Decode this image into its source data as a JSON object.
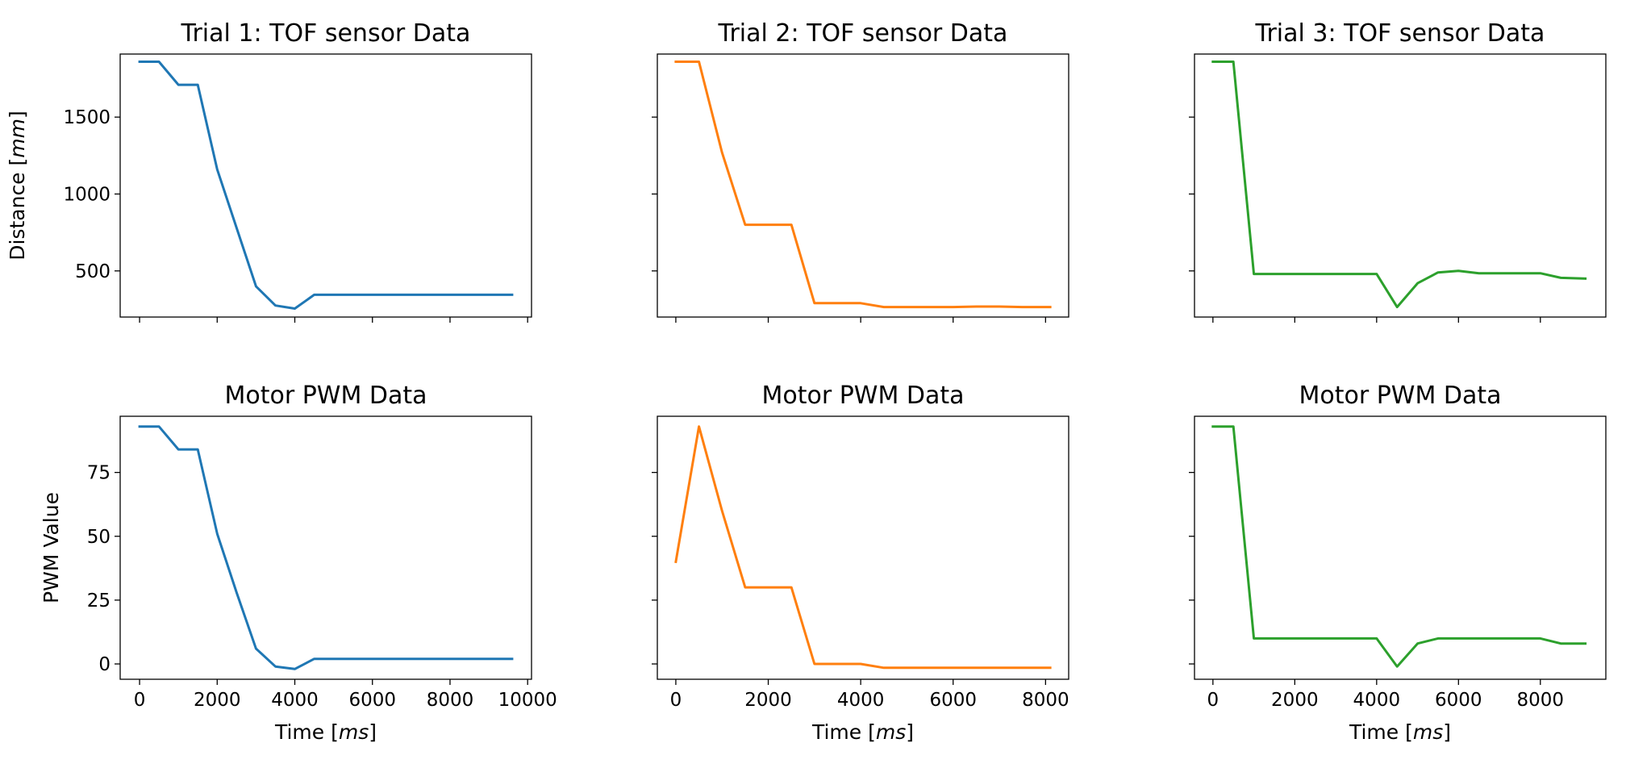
{
  "figure": {
    "colors": {
      "trial1": "#1f77b4",
      "trial2": "#ff7f0e",
      "trial3": "#2ca02c",
      "axes": "#000000"
    }
  },
  "chart_data": [
    {
      "type": "line",
      "title": "Trial 1: TOF sensor Data",
      "xlabel": "",
      "ylabel": "Distance [mm]",
      "xlim": [
        -500,
        10100
      ],
      "ylim": [
        200,
        1910
      ],
      "xticks": [
        0,
        2000,
        4000,
        6000,
        8000,
        10000
      ],
      "xtick_labels_shown": false,
      "yticks": [
        500,
        1000,
        1500
      ],
      "ytick_labels": [
        "500",
        "1000",
        "1500"
      ],
      "series": [
        {
          "color": "#1f77b4",
          "x": [
            0,
            500,
            1000,
            1500,
            2000,
            2500,
            3000,
            3500,
            4000,
            4500,
            5000,
            5500,
            6000,
            6500,
            7000,
            7500,
            8000,
            8500,
            9000,
            9600
          ],
          "y": [
            1860,
            1860,
            1710,
            1710,
            1160,
            780,
            400,
            275,
            255,
            345,
            345,
            345,
            345,
            345,
            345,
            345,
            345,
            345,
            345,
            345
          ]
        }
      ]
    },
    {
      "type": "line",
      "title": "Trial 2: TOF sensor Data",
      "xlabel": "",
      "ylabel": "",
      "xlim": [
        -400,
        8500
      ],
      "ylim": [
        200,
        1910
      ],
      "xticks": [
        0,
        2000,
        4000,
        6000,
        8000
      ],
      "xtick_labels_shown": false,
      "yticks": [
        500,
        1000,
        1500
      ],
      "ytick_labels_shown": false,
      "series": [
        {
          "color": "#ff7f0e",
          "x": [
            0,
            500,
            1000,
            1500,
            2000,
            2500,
            3000,
            3500,
            4000,
            4500,
            5000,
            5500,
            6000,
            6500,
            7000,
            7500,
            8100
          ],
          "y": [
            1860,
            1860,
            1270,
            800,
            800,
            800,
            290,
            290,
            290,
            265,
            265,
            265,
            265,
            268,
            268,
            265,
            265
          ]
        }
      ]
    },
    {
      "type": "line",
      "title": "Trial 3: TOF sensor Data",
      "xlabel": "",
      "ylabel": "",
      "xlim": [
        -450,
        9600
      ],
      "ylim": [
        200,
        1910
      ],
      "xticks": [
        0,
        2000,
        4000,
        6000,
        8000
      ],
      "xtick_labels_shown": false,
      "yticks": [
        500,
        1000,
        1500
      ],
      "ytick_labels_shown": false,
      "series": [
        {
          "color": "#2ca02c",
          "x": [
            0,
            500,
            1000,
            1500,
            2000,
            2500,
            3000,
            3500,
            4000,
            4500,
            5000,
            5500,
            6000,
            6500,
            7000,
            7500,
            8000,
            8500,
            9100
          ],
          "y": [
            1860,
            1860,
            480,
            480,
            480,
            480,
            480,
            480,
            480,
            265,
            420,
            490,
            500,
            485,
            485,
            485,
            485,
            455,
            450
          ]
        }
      ]
    },
    {
      "type": "line",
      "title": "Motor PWM Data",
      "xlabel": "Time [ms]",
      "ylabel": "PWM Value",
      "xlim": [
        -500,
        10100
      ],
      "ylim": [
        -6,
        97
      ],
      "xticks": [
        0,
        2000,
        4000,
        6000,
        8000,
        10000
      ],
      "xtick_labels": [
        "0",
        "2000",
        "4000",
        "6000",
        "8000",
        "10000"
      ],
      "yticks": [
        0,
        25,
        50,
        75
      ],
      "ytick_labels": [
        "0",
        "25",
        "50",
        "75"
      ],
      "series": [
        {
          "color": "#1f77b4",
          "x": [
            0,
            500,
            1000,
            1500,
            2000,
            2500,
            3000,
            3500,
            4000,
            4500,
            5000,
            5500,
            6000,
            6500,
            7000,
            7500,
            8000,
            8500,
            9000,
            9600
          ],
          "y": [
            93,
            93,
            84,
            84,
            51,
            28,
            6,
            -1,
            -2,
            2,
            2,
            2,
            2,
            2,
            2,
            2,
            2,
            2,
            2,
            2
          ]
        }
      ]
    },
    {
      "type": "line",
      "title": "Motor PWM Data",
      "xlabel": "Time [ms]",
      "ylabel": "",
      "xlim": [
        -400,
        8500
      ],
      "ylim": [
        -6,
        97
      ],
      "xticks": [
        0,
        2000,
        4000,
        6000,
        8000
      ],
      "xtick_labels": [
        "0",
        "2000",
        "4000",
        "6000",
        "8000"
      ],
      "yticks": [
        0,
        25,
        50,
        75
      ],
      "ytick_labels_shown": false,
      "series": [
        {
          "color": "#ff7f0e",
          "x": [
            0,
            500,
            1000,
            1500,
            2000,
            2500,
            3000,
            3500,
            4000,
            4500,
            5000,
            5500,
            6000,
            6500,
            7000,
            7500,
            8100
          ],
          "y": [
            40,
            93,
            60,
            30,
            30,
            30,
            0,
            0,
            0,
            -1.5,
            -1.5,
            -1.5,
            -1.5,
            -1.5,
            -1.5,
            -1.5,
            -1.5
          ]
        }
      ]
    },
    {
      "type": "line",
      "title": "Motor PWM Data",
      "xlabel": "Time [ms]",
      "ylabel": "",
      "xlim": [
        -450,
        9600
      ],
      "ylim": [
        -6,
        97
      ],
      "xticks": [
        0,
        2000,
        4000,
        6000,
        8000
      ],
      "xtick_labels": [
        "0",
        "2000",
        "4000",
        "6000",
        "8000"
      ],
      "yticks": [
        0,
        25,
        50,
        75
      ],
      "ytick_labels_shown": false,
      "series": [
        {
          "color": "#2ca02c",
          "x": [
            0,
            500,
            1000,
            1500,
            2000,
            2500,
            3000,
            3500,
            4000,
            4500,
            5000,
            5500,
            6000,
            6500,
            7000,
            7500,
            8000,
            8500,
            9100
          ],
          "y": [
            93,
            93,
            10,
            10,
            10,
            10,
            10,
            10,
            10,
            -1,
            8,
            10,
            10,
            10,
            10,
            10,
            10,
            8,
            8
          ]
        }
      ]
    }
  ]
}
